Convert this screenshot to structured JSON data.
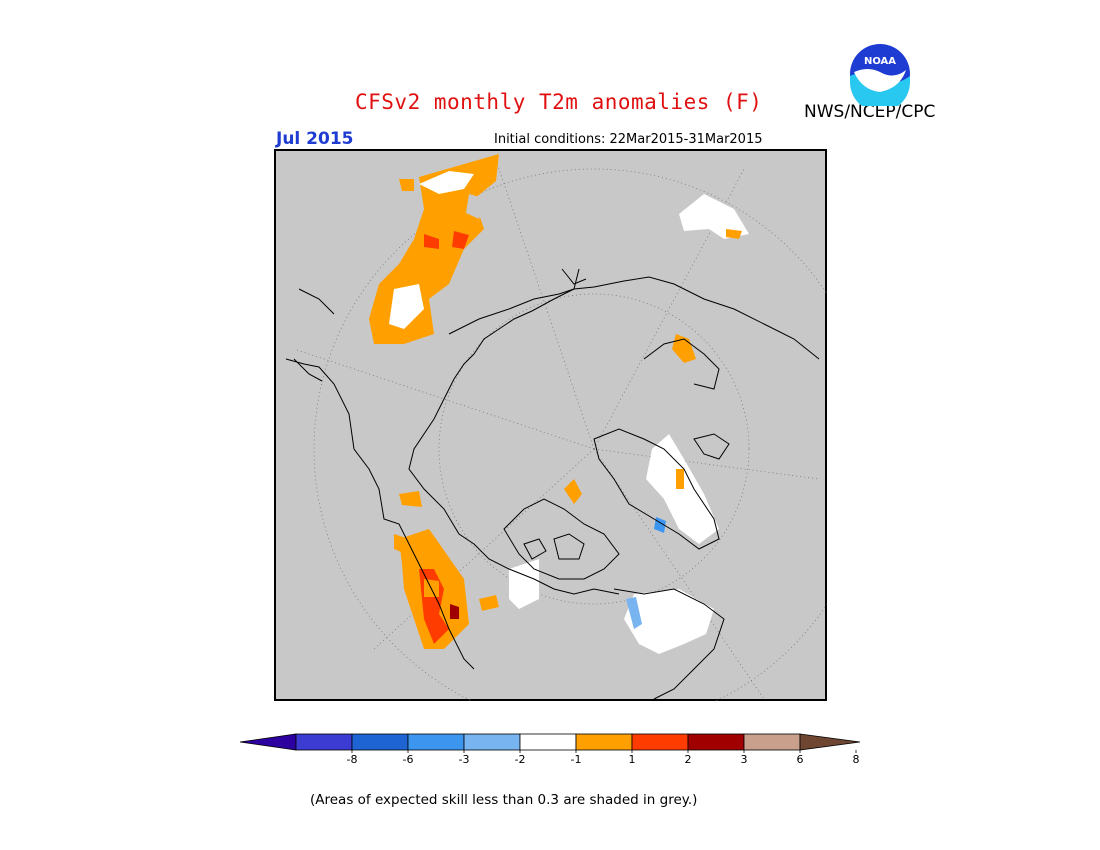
{
  "header": {
    "title": "CFSv2 monthly T2m anomalies (F)",
    "agency": "NWS/NCEP/CPC",
    "target_month": "Jul 2015",
    "initial_conditions": "Initial conditions: 22Mar2015-31Mar2015"
  },
  "logo": {
    "text": "NOAA",
    "icon": "noaa-logo-icon"
  },
  "map": {
    "projection": "north-polar-stereographic",
    "background_color": "#c8c8c8",
    "coastline_color": "#000000",
    "grid": "dotted"
  },
  "colorbar": {
    "ticks": [
      "-8",
      "-6",
      "-3",
      "-2",
      "-1",
      "1",
      "2",
      "3",
      "6",
      "8"
    ],
    "colors": [
      "#2d00a0",
      "#3c3cd2",
      "#1e64d2",
      "#3c96f0",
      "#78b4f0",
      "#ffffff",
      "#ffa000",
      "#ff3c00",
      "#a00000",
      "#c8a08c",
      "#6e4632"
    ]
  },
  "footnote": "(Areas of expected skill less than 0.3 are shaded in grey.)"
}
